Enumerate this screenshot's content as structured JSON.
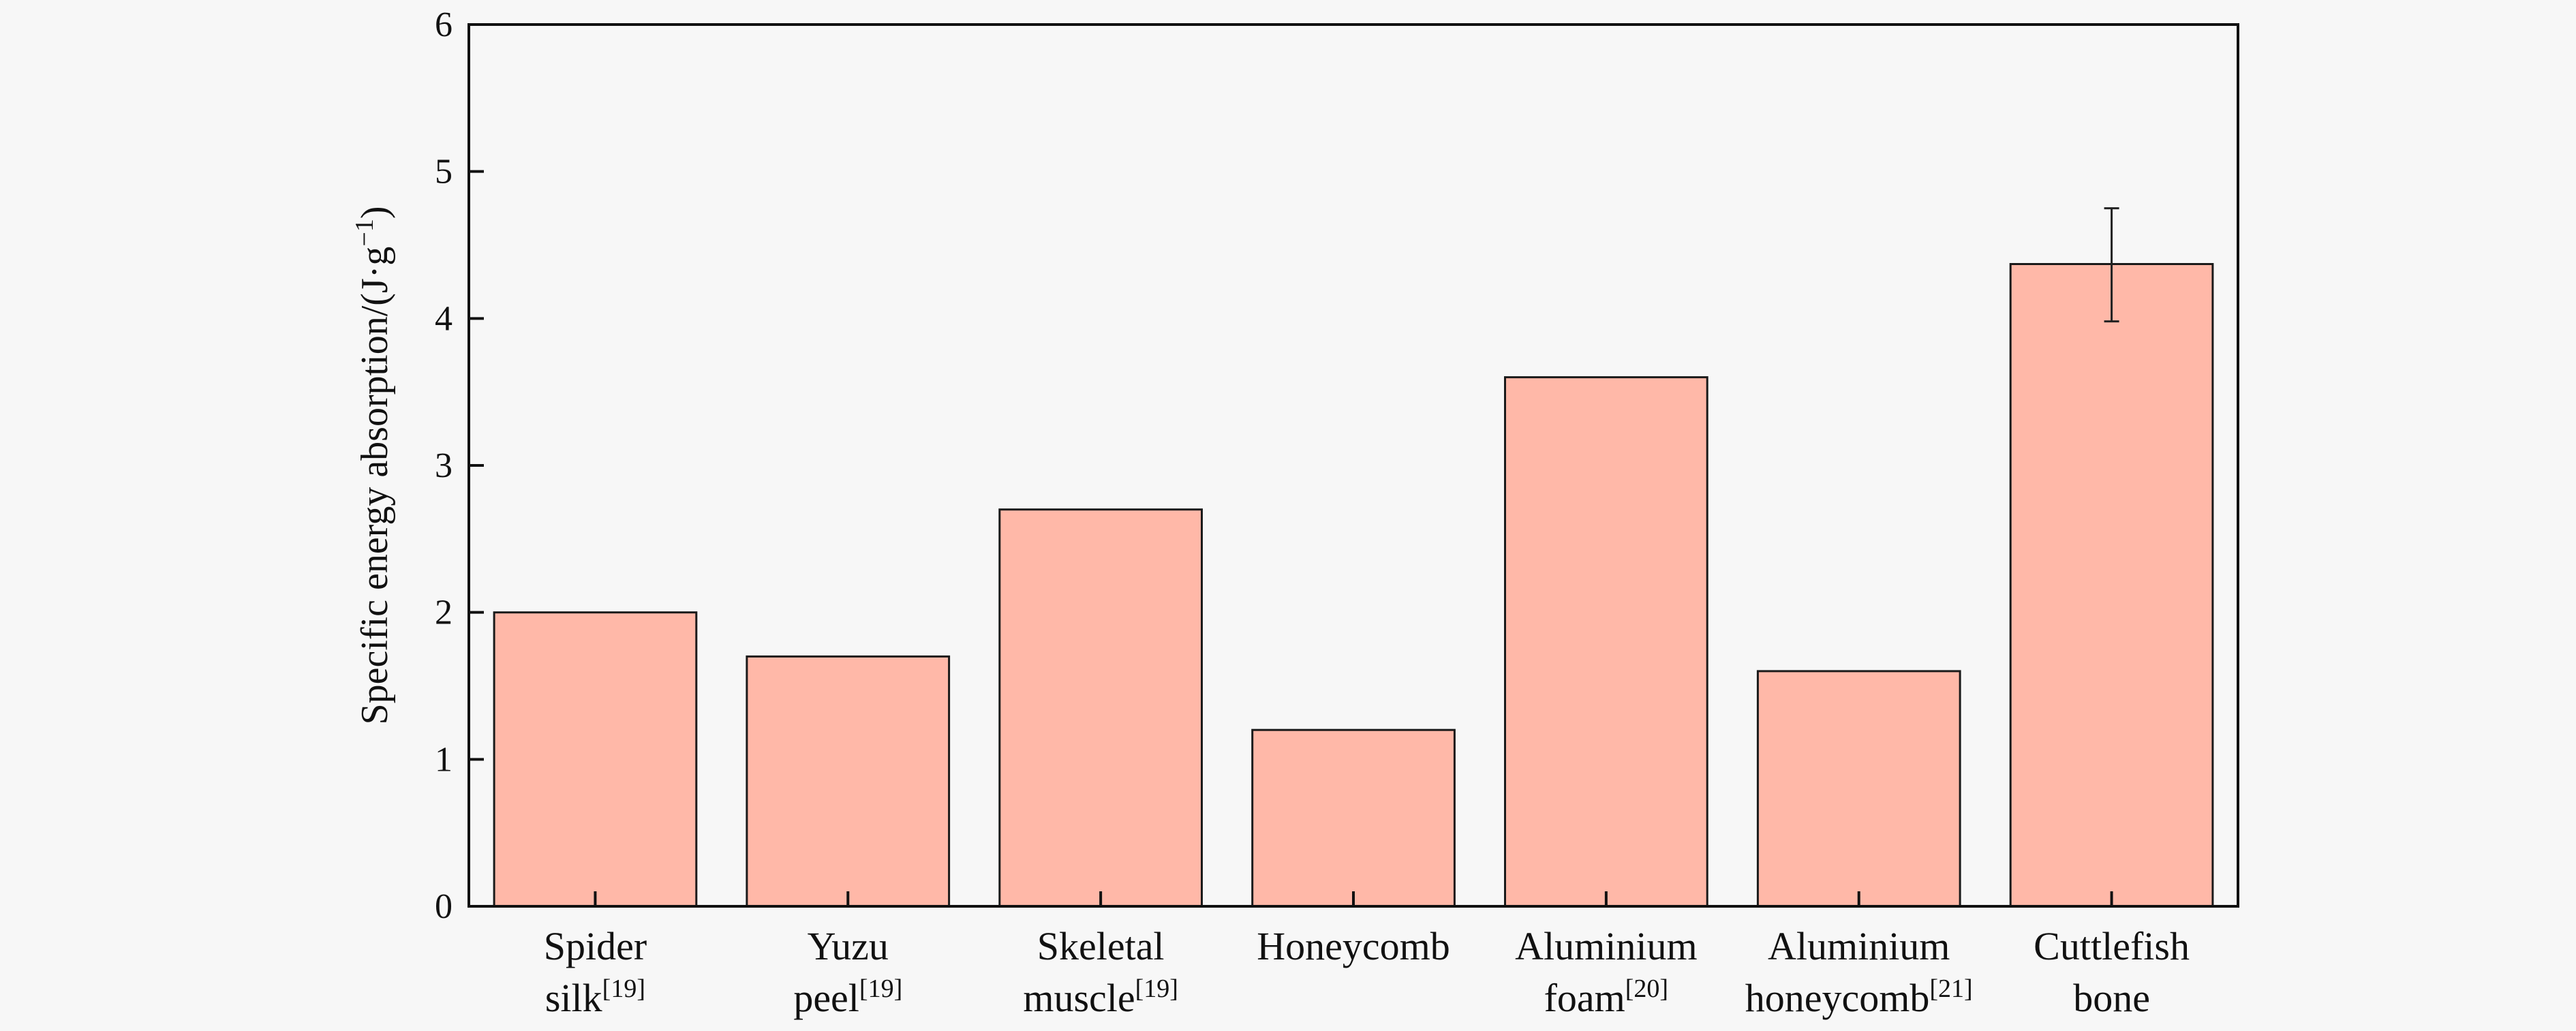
{
  "chart_data": {
    "type": "bar",
    "categories": [
      {
        "lines": [
          {
            "text": "Spider"
          },
          {
            "text": "silk",
            "sup": "[19]"
          }
        ]
      },
      {
        "lines": [
          {
            "text": "Yuzu"
          },
          {
            "text": "peel",
            "sup": "[19]"
          }
        ]
      },
      {
        "lines": [
          {
            "text": "Skeletal"
          },
          {
            "text": "muscle",
            "sup": "[19]"
          }
        ]
      },
      {
        "lines": [
          {
            "text": "Honeycomb"
          }
        ]
      },
      {
        "lines": [
          {
            "text": "Aluminium"
          },
          {
            "text": "foam",
            "sup": "[20]"
          }
        ]
      },
      {
        "lines": [
          {
            "text": "Aluminium"
          },
          {
            "text": "honeycomb",
            "sup": "[21]"
          }
        ]
      },
      {
        "lines": [
          {
            "text": "Cuttlefish"
          },
          {
            "text": "bone"
          }
        ]
      }
    ],
    "values": [
      2.0,
      1.7,
      2.7,
      1.2,
      3.6,
      1.6,
      4.37
    ],
    "error_bars": [
      null,
      null,
      null,
      null,
      null,
      null,
      [
        3.98,
        4.75
      ]
    ],
    "ylabel": {
      "main": "Specific energy absorption/(J·g",
      "sup": "−1",
      "end": ")"
    },
    "ylim": [
      0,
      6
    ],
    "yticks": [
      0,
      1,
      2,
      3,
      4,
      5,
      6
    ],
    "grid": false,
    "legend": "none",
    "colors": {
      "bar": "#ffb8a8",
      "edge": "#1a1a1a",
      "axis": "#111111",
      "background": "#f7f7f7"
    }
  }
}
